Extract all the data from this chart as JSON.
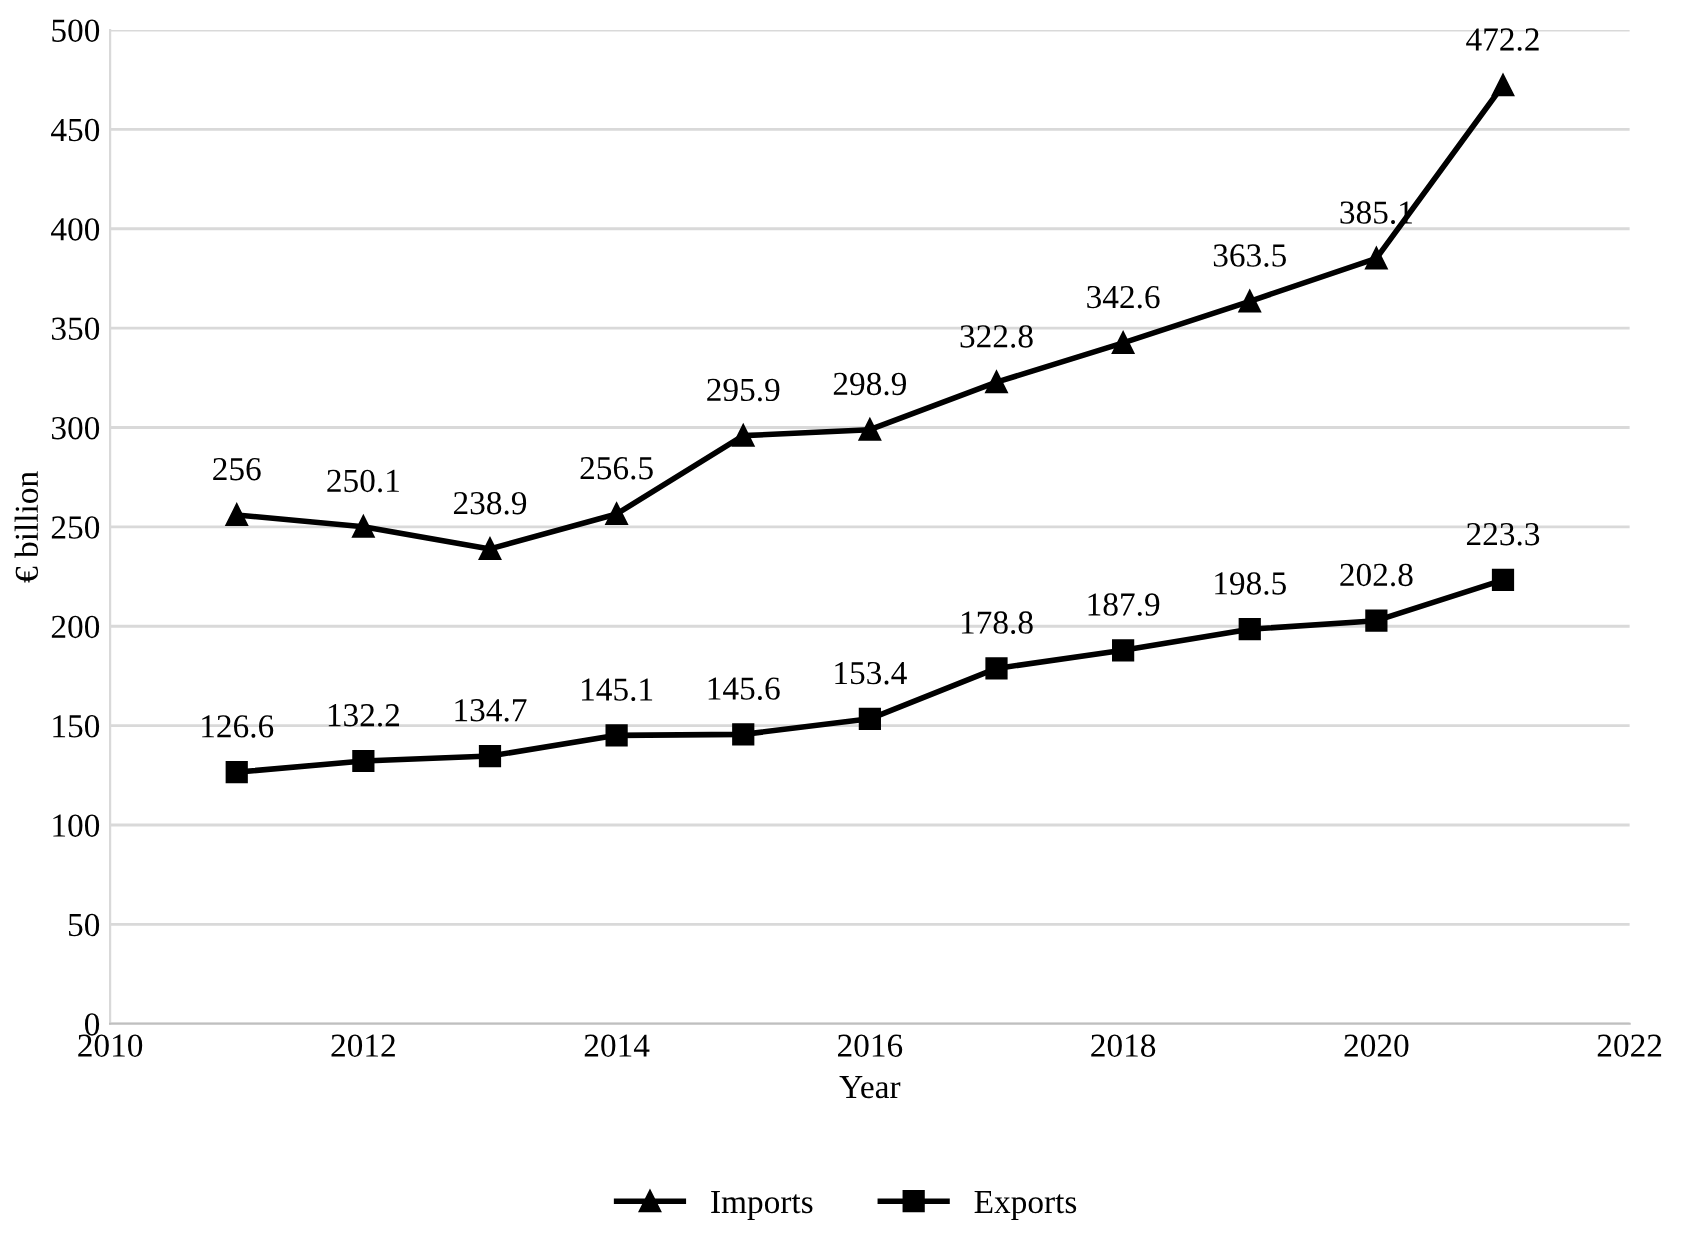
{
  "chart_data": {
    "type": "line",
    "xlabel": "Year",
    "ylabel": "€ billion",
    "x": [
      2011,
      2012,
      2013,
      2014,
      2015,
      2016,
      2017,
      2018,
      2019,
      2020,
      2021
    ],
    "series": [
      {
        "name": "Imports",
        "color": "#000000",
        "marker": "triangle",
        "values": [
          256,
          250.1,
          238.9,
          256.5,
          295.9,
          298.9,
          322.8,
          342.6,
          363.5,
          385.1,
          472.2
        ]
      },
      {
        "name": "Exports",
        "color": "#000000",
        "marker": "square",
        "values": [
          126.6,
          132.2,
          134.7,
          145.1,
          145.6,
          153.4,
          178.8,
          187.9,
          198.5,
          202.8,
          223.3
        ]
      }
    ],
    "xlim": [
      2010,
      2022
    ],
    "xticks": [
      2010,
      2012,
      2014,
      2016,
      2018,
      2020,
      2022
    ],
    "ylim": [
      0,
      500
    ],
    "yticks": [
      0,
      50,
      100,
      150,
      200,
      250,
      300,
      350,
      400,
      450,
      500
    ],
    "grid": "y",
    "legend": "bottom",
    "data_labels": true,
    "line_style": "solid"
  }
}
